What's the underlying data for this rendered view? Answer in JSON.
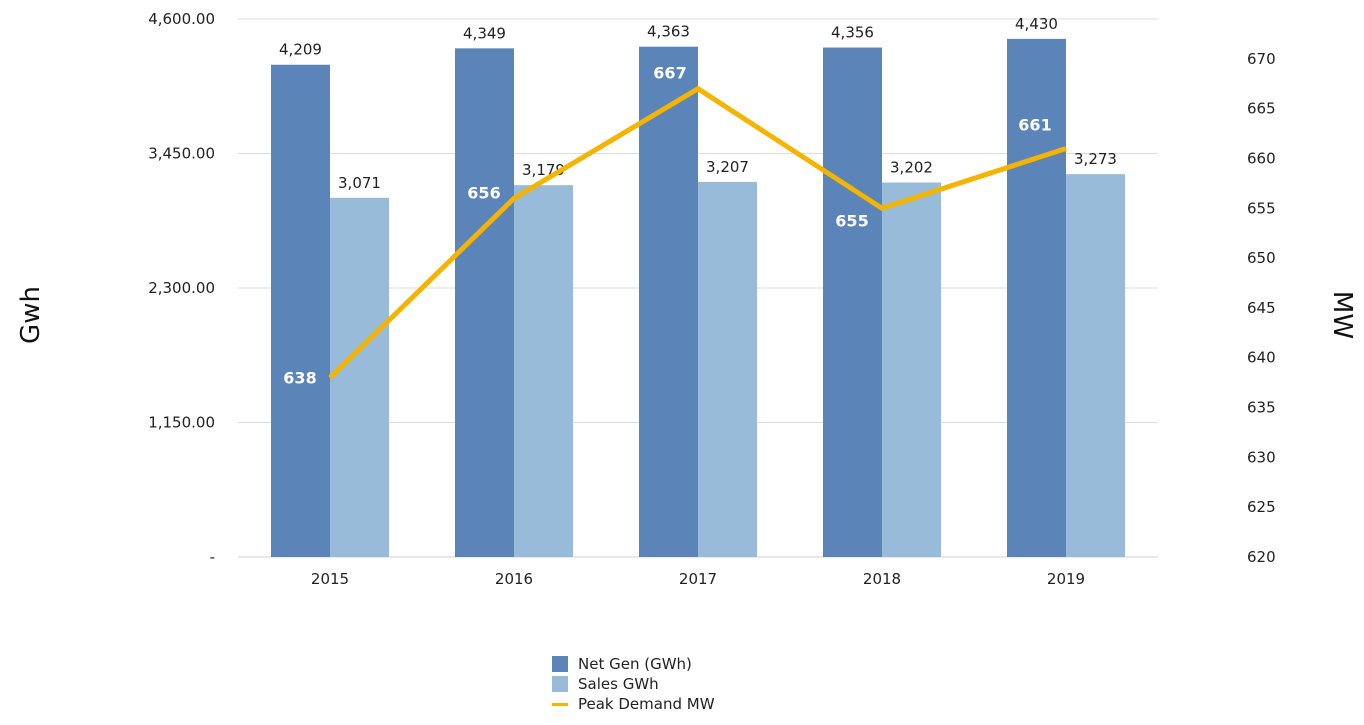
{
  "chart_data": {
    "type": "bar",
    "categories": [
      "2015",
      "2016",
      "2017",
      "2018",
      "2019"
    ],
    "series": [
      {
        "name": "Net Gen (GWh)",
        "type": "bar",
        "axis": "left",
        "color": "#5b84b8",
        "values": [
          4209,
          4349,
          4363,
          4356,
          4430
        ],
        "labels": [
          "4,209",
          "4,349",
          "4,363",
          "4,356",
          "4,430"
        ]
      },
      {
        "name": "Sales GWh",
        "type": "bar",
        "axis": "left",
        "color": "#98bbda",
        "values": [
          3071,
          3179,
          3207,
          3202,
          3273
        ],
        "labels": [
          "3,071",
          "3,179",
          "3,207",
          "3,202",
          "3,273"
        ]
      },
      {
        "name": "Peak Demand MW",
        "type": "line",
        "axis": "right",
        "color": "#f5b400",
        "values": [
          638,
          656,
          667,
          655,
          661
        ],
        "labels": [
          "638",
          "656",
          "667",
          "655",
          "661"
        ]
      }
    ],
    "ylabel": "Gwh",
    "y2label": "MW",
    "ylim": [
      0,
      4600
    ],
    "y2lim": [
      620,
      674
    ],
    "yticks": [
      0,
      1150,
      2300,
      3450,
      4600
    ],
    "ytick_labels": [
      "-",
      "1,150.00",
      "2,300.00",
      "3,450.00",
      "4,600.00"
    ],
    "y2ticks": [
      620,
      625,
      630,
      635,
      640,
      645,
      650,
      655,
      660,
      665,
      670
    ],
    "y2tick_labels": [
      "620",
      "625",
      "630",
      "635",
      "640",
      "645",
      "650",
      "655",
      "660",
      "665",
      "670"
    ],
    "grid": true,
    "legend_position": "bottom"
  }
}
